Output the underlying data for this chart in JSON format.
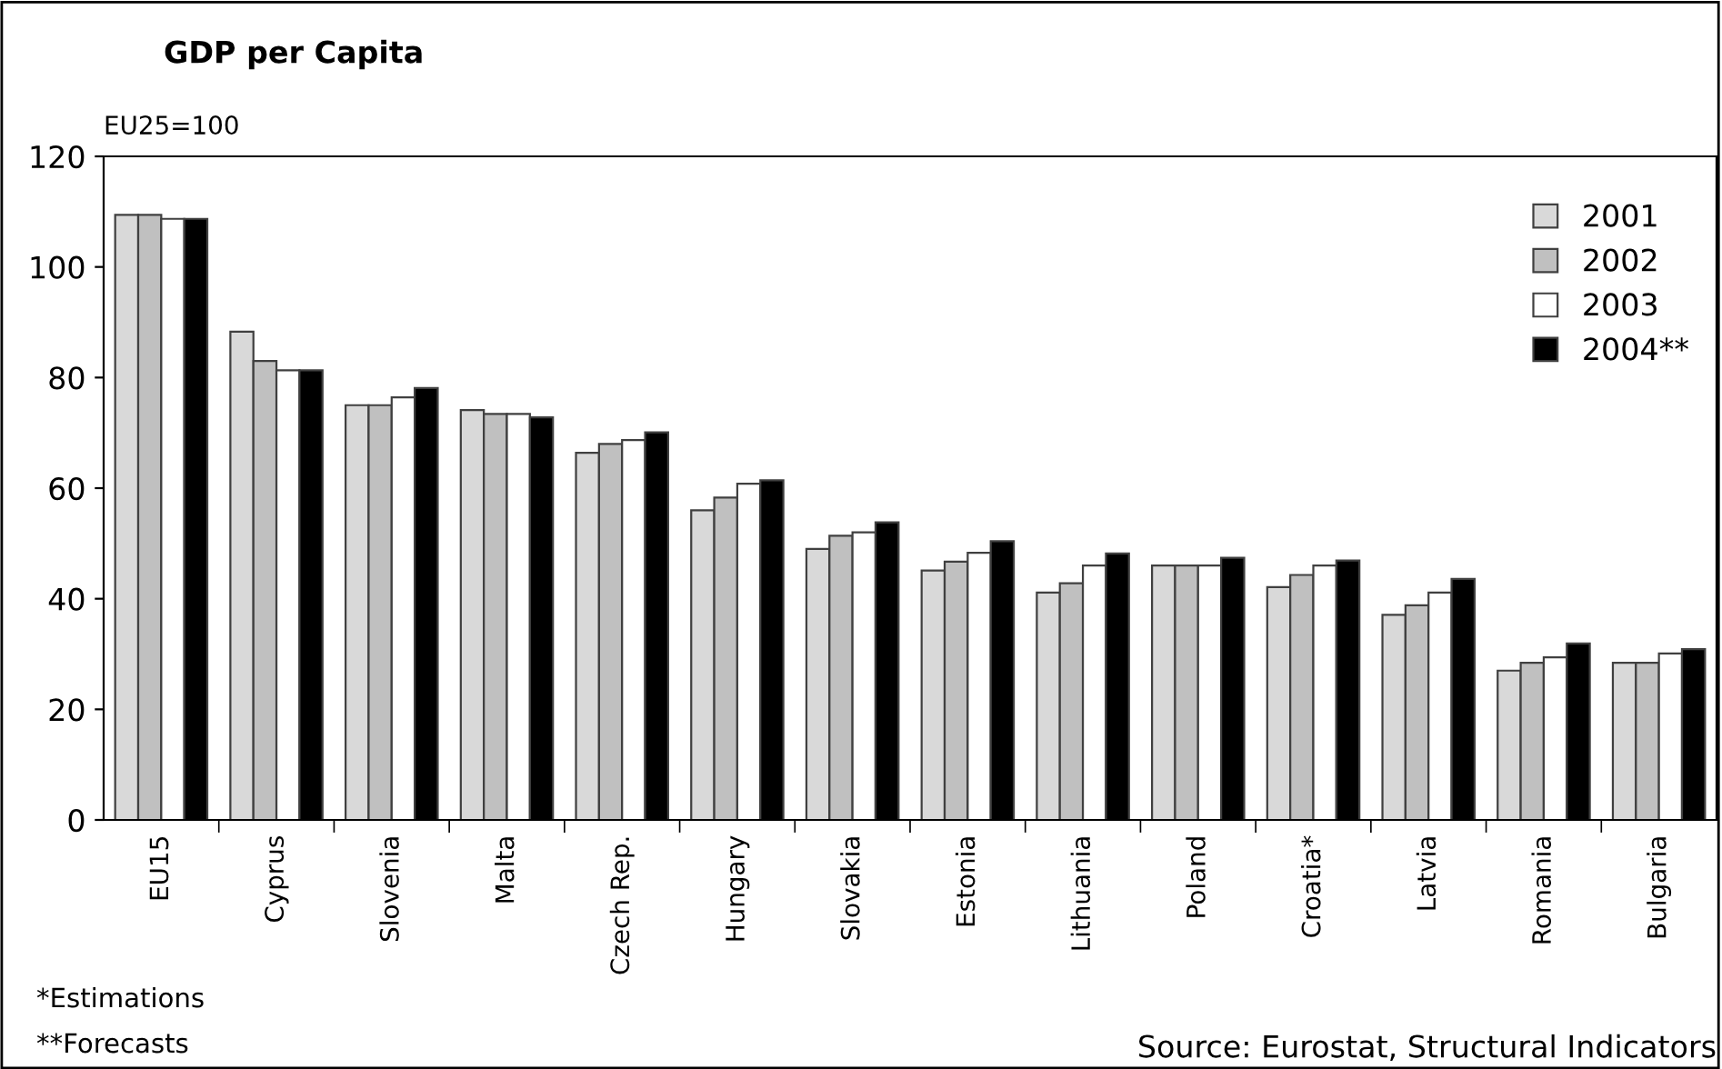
{
  "chart_data": {
    "type": "bar",
    "title": "GDP per Capita",
    "subtitle": "EU25=100",
    "categories": [
      "EU15",
      "Cyprus",
      "Slovenia",
      "Malta",
      "Czech Rep.",
      "Hungary",
      "Slovakia",
      "Estonia",
      "Lithuania",
      "Poland",
      "Croatia*",
      "Latvia",
      "Romania",
      "Bulgaria"
    ],
    "series": [
      {
        "name": "2001",
        "color": "#d9d9d9",
        "values": [
          109.4,
          88.3,
          75,
          74.1,
          66.4,
          56,
          49,
          45.1,
          41.1,
          46,
          42.1,
          37.1,
          27,
          28.4
        ]
      },
      {
        "name": "2002",
        "color": "#c0c0c0",
        "values": [
          109.4,
          83,
          75,
          73.4,
          68,
          58.3,
          51.4,
          46.7,
          42.8,
          46,
          44.3,
          38.8,
          28.4,
          28.4
        ]
      },
      {
        "name": "2003",
        "color": "#ffffff",
        "values": [
          108.7,
          81.3,
          76.4,
          73.4,
          68.7,
          60.8,
          52,
          48.3,
          46,
          46,
          46,
          41.1,
          29.4,
          30.1
        ]
      },
      {
        "name": "2004**",
        "color": "#000000",
        "values": [
          108.7,
          81.3,
          78.1,
          72.8,
          70.1,
          61.4,
          53.8,
          50.4,
          48.2,
          47.4,
          46.9,
          43.6,
          31.9,
          30.9
        ]
      }
    ],
    "ylim": [
      0,
      120
    ],
    "yticks": [
      0,
      20,
      40,
      60,
      80,
      100,
      120
    ],
    "grid": false,
    "legend": "top right",
    "annotations": [
      "*Estimations",
      "**Forecasts",
      "Source: Eurostat, Structural Indicators"
    ]
  }
}
